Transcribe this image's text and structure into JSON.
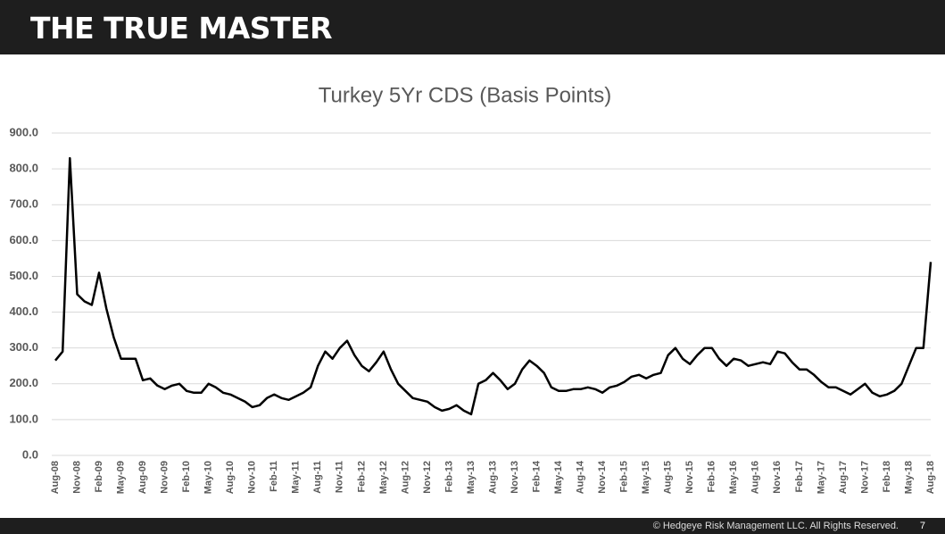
{
  "header": {
    "title": "THE TRUE MASTER"
  },
  "footer": {
    "text": "© Hedgeye Risk Management LLC. All Rights Reserved.",
    "page": "7"
  },
  "chart_data": {
    "type": "line",
    "title": "Turkey 5Yr CDS (Basis Points)",
    "color": "#000000",
    "grid": true,
    "ylim": [
      0,
      900
    ],
    "yticks": [
      {
        "value": 0,
        "label": "0.0"
      },
      {
        "value": 100,
        "label": "100.0"
      },
      {
        "value": 200,
        "label": "200.0"
      },
      {
        "value": 300,
        "label": "300.0"
      },
      {
        "value": 400,
        "label": "400.0"
      },
      {
        "value": 500,
        "label": "500.0"
      },
      {
        "value": 600,
        "label": "600.0"
      },
      {
        "value": 700,
        "label": "700.0"
      },
      {
        "value": 800,
        "label": "800.0"
      },
      {
        "value": 900,
        "label": "900.0"
      }
    ],
    "categories": [
      "Aug-08",
      null,
      null,
      "Nov-08",
      null,
      null,
      "Feb-09",
      null,
      null,
      "May-09",
      null,
      null,
      "Aug-09",
      null,
      null,
      "Nov-09",
      null,
      null,
      "Feb-10",
      null,
      null,
      "May-10",
      null,
      null,
      "Aug-10",
      null,
      null,
      "Nov-10",
      null,
      null,
      "Feb-11",
      null,
      null,
      "May-11",
      null,
      null,
      "Aug-11",
      null,
      null,
      "Nov-11",
      null,
      null,
      "Feb-12",
      null,
      null,
      "May-12",
      null,
      null,
      "Aug-12",
      null,
      null,
      "Nov-12",
      null,
      null,
      "Feb-13",
      null,
      null,
      "May-13",
      null,
      null,
      "Aug-13",
      null,
      null,
      "Nov-13",
      null,
      null,
      "Feb-14",
      null,
      null,
      "May-14",
      null,
      null,
      "Aug-14",
      null,
      null,
      "Nov-14",
      null,
      null,
      "Feb-15",
      null,
      null,
      "May-15",
      null,
      null,
      "Aug-15",
      null,
      null,
      "Nov-15",
      null,
      null,
      "Feb-16",
      null,
      null,
      "May-16",
      null,
      null,
      "Aug-16",
      null,
      null,
      "Nov-16",
      null,
      null,
      "Feb-17",
      null,
      null,
      "May-17",
      null,
      null,
      "Aug-17",
      null,
      null,
      "Nov-17",
      null,
      null,
      "Feb-18",
      null,
      null,
      "May-18",
      null,
      null,
      "Aug-18"
    ],
    "values": [
      265,
      290,
      830,
      450,
      430,
      420,
      510,
      410,
      330,
      270,
      270,
      270,
      210,
      215,
      195,
      185,
      195,
      200,
      180,
      175,
      175,
      200,
      190,
      175,
      170,
      160,
      150,
      135,
      140,
      160,
      170,
      160,
      155,
      165,
      175,
      190,
      250,
      290,
      270,
      300,
      320,
      280,
      250,
      235,
      260,
      290,
      240,
      200,
      180,
      160,
      155,
      150,
      135,
      125,
      130,
      140,
      125,
      115,
      200,
      210,
      230,
      210,
      185,
      200,
      240,
      265,
      250,
      230,
      190,
      180,
      180,
      185,
      185,
      190,
      185,
      175,
      190,
      195,
      205,
      220,
      225,
      215,
      225,
      230,
      280,
      300,
      270,
      255,
      280,
      300,
      300,
      270,
      250,
      270,
      265,
      250,
      255,
      260,
      255,
      290,
      285,
      260,
      240,
      240,
      225,
      205,
      190,
      190,
      180,
      170,
      185,
      200,
      175,
      165,
      170,
      180,
      200,
      250,
      300,
      300,
      540
    ]
  }
}
